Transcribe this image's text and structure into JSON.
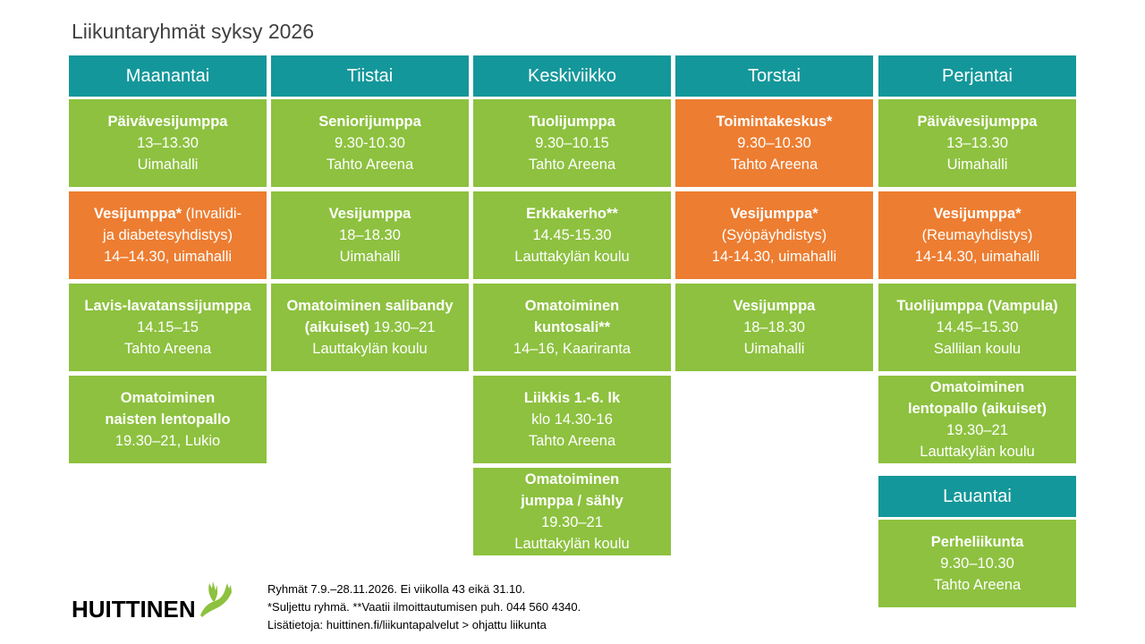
{
  "title": "Liikuntaryhmät syksy 2026",
  "colors": {
    "header": "#14979a",
    "green": "#8dc13f",
    "orange": "#ed7d31"
  },
  "days": [
    {
      "name": "Maanantai",
      "items": [
        {
          "color": "green",
          "name": "Päivävesijumppa",
          "lines": [
            "13–13.30",
            "Uimahalli"
          ]
        },
        {
          "color": "orange",
          "name": "Vesijumppa*",
          "name_suffix": " (Invalidi-",
          "lines": [
            "ja diabetesyhdistys)",
            "14–14.30, uimahalli"
          ]
        },
        {
          "color": "green",
          "name": "Lavis-lavatanssijumppa",
          "lines": [
            "14.15–15",
            "Tahto Areena"
          ]
        },
        {
          "color": "green",
          "name": "Omatoiminen naisten lentopallo",
          "lines": [
            "19.30–21, Lukio"
          ]
        }
      ]
    },
    {
      "name": "Tiistai",
      "items": [
        {
          "color": "green",
          "name": "Seniorijumppa",
          "lines": [
            "9.30-10.30",
            "Tahto Areena"
          ]
        },
        {
          "color": "green",
          "name": "Vesijumppa",
          "lines": [
            "18–18.30",
            "Uimahalli"
          ]
        },
        {
          "color": "green",
          "name": "Omatoiminen salibandy (aikuiset)",
          "name_suffix": " 19.30–21",
          "lines": [
            "Lauttakylän koulu"
          ]
        }
      ]
    },
    {
      "name": "Keskiviikko",
      "items": [
        {
          "color": "green",
          "name": "Tuolijumppa",
          "lines": [
            "9.30–10.15",
            "Tahto Areena"
          ]
        },
        {
          "color": "green",
          "name": "Erkkakerho**",
          "lines": [
            "14.45-15.30",
            "Lauttakylän koulu"
          ]
        },
        {
          "color": "green",
          "name": "Omatoiminen kuntosali**",
          "lines": [
            "14–16, Kaariranta"
          ]
        },
        {
          "color": "green",
          "name": "Liikkis 1.-6. lk",
          "lines": [
            "klo 14.30-16",
            "Tahto Areena"
          ]
        },
        {
          "color": "green",
          "name": "Omatoiminen jumppa / sähly",
          "lines": [
            "19.30–21",
            "Lauttakylän koulu"
          ]
        }
      ]
    },
    {
      "name": "Torstai",
      "items": [
        {
          "color": "orange",
          "name": "Toimintakeskus*",
          "lines": [
            "9.30–10.30",
            "Tahto Areena"
          ]
        },
        {
          "color": "orange",
          "name": "Vesijumppa*",
          "lines": [
            "(Syöpäyhdistys)",
            "14-14.30, uimahalli"
          ]
        },
        {
          "color": "green",
          "name": "Vesijumppa",
          "lines": [
            "18–18.30",
            "Uimahalli"
          ]
        }
      ]
    },
    {
      "name": "Perjantai",
      "items": [
        {
          "color": "green",
          "name": "Päivävesijumppa",
          "lines": [
            "13–13.30",
            "Uimahalli"
          ]
        },
        {
          "color": "orange",
          "name": "Vesijumppa*",
          "lines": [
            "(Reumayhdistys)",
            "14-14.30, uimahalli"
          ]
        },
        {
          "color": "green",
          "name": "Tuolijumppa (Vampula)",
          "lines": [
            "14.45–15.30",
            "Sallilan koulu"
          ]
        },
        {
          "color": "green",
          "name": "Omatoiminen lentopallo (aikuiset)",
          "lines": [
            "19.30–21",
            "Lauttakylän koulu"
          ]
        }
      ]
    }
  ],
  "saturday": {
    "name": "Lauantai",
    "item": {
      "color": "green",
      "name": "Perheliikunta",
      "lines": [
        "9.30–10.30",
        "Tahto Areena"
      ]
    }
  },
  "footer": {
    "line1": "Ryhmät 7.9.–28.11.2026.  Ei viikolla 43 eikä 31.10.",
    "line2": "*Suljettu ryhmä. **Vaatii ilmoittautumisen puh. 044 560 4340.",
    "line3": "Lisätietoja: huittinen.fi/liikuntapalvelut > ohjattu liikunta"
  },
  "logo": {
    "text": "HUITTINEN",
    "accent": "#8dc13f"
  }
}
